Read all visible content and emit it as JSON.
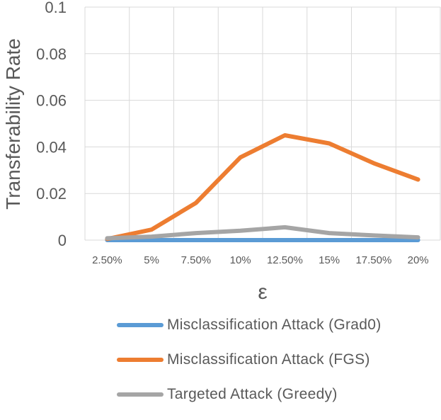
{
  "chart_data": {
    "type": "line",
    "title": "",
    "xlabel": "ε",
    "ylabel": "Transferability Rate",
    "categories": [
      "2.50%",
      "5%",
      "7.50%",
      "10%",
      "12.50%",
      "15%",
      "17.50%",
      "20%"
    ],
    "ylim": [
      0,
      0.1
    ],
    "yticks": [
      0,
      0.02,
      0.04,
      0.06,
      0.08,
      0.1
    ],
    "ytick_labels": [
      "0",
      "0.02",
      "0.04",
      "0.06",
      "0.08",
      "0.1"
    ],
    "grid": true,
    "legend_position": "bottom",
    "series": [
      {
        "name": "Misclassification Attack (Grad0)",
        "color": "#5B9BD5",
        "values": [
          0,
          0,
          0,
          0,
          0,
          0,
          0,
          0
        ]
      },
      {
        "name": "Misclassification Attack (FGS)",
        "color": "#ED7D31",
        "values": [
          0.0005,
          0.0045,
          0.016,
          0.0355,
          0.045,
          0.0415,
          0.033,
          0.026
        ]
      },
      {
        "name": "Targeted Attack (Greedy)",
        "color": "#A5A5A5",
        "values": [
          0.0008,
          0.0015,
          0.003,
          0.004,
          0.0055,
          0.003,
          0.002,
          0.0012
        ]
      }
    ]
  }
}
